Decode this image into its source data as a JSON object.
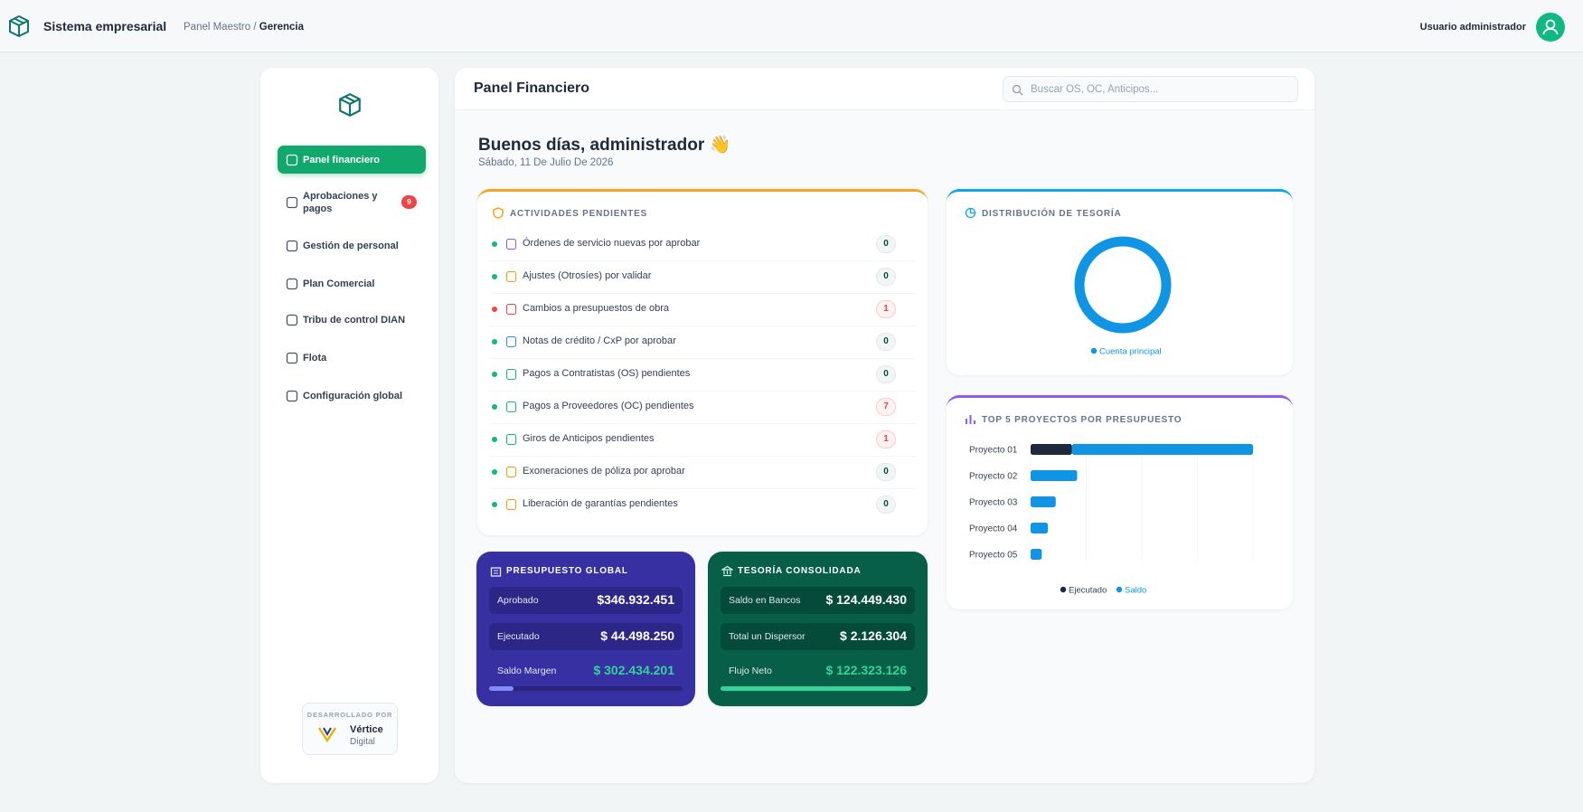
{
  "header": {
    "app_name": "Sistema empresarial",
    "breadcrumb": [
      "Panel Maestro",
      "Gerencia"
    ],
    "user": "Usuario administrador"
  },
  "sidebar": {
    "menu": [
      {
        "label": "Panel financiero",
        "active": true
      },
      {
        "label": "Aprobaciones y pagos",
        "badge": 9
      },
      {
        "label": "Gestión de personal"
      },
      {
        "label": "Plan Comercial"
      },
      {
        "label": "Tribu de control DIAN"
      },
      {
        "label": "Flota"
      },
      {
        "label": "Configuración global"
      }
    ],
    "credit": {
      "caption": "DESARROLLADO POR",
      "brand": "Vértice",
      "sub": "Digital"
    }
  },
  "main": {
    "title": "Panel Financiero",
    "search_placeholder": "Buscar OS, OC, Anticipos...",
    "greeting": "Buenos días, administrador 👋",
    "date": "Sábado, 11 De Julio De 2026"
  },
  "activities": {
    "title": "ACTIVIDADES PENDIENTES",
    "items": [
      {
        "label": "Órdenes de servicio nuevas por aprobar",
        "count": 0,
        "dot_color": "#10b981",
        "icon_color": "#8b5cf6"
      },
      {
        "label": "Ajustes (Otrosíes) por validar",
        "count": 0,
        "dot_color": "#10b981",
        "icon_color": "#f59e0b"
      },
      {
        "label": "Cambios a presupuestos de obra",
        "count": 1,
        "dot_color": "#ef4444",
        "icon_color": "#ef4444"
      },
      {
        "label": "Notas de crédito / CxP por aprobar",
        "count": 0,
        "dot_color": "#10b981",
        "icon_color": "#3b82f6"
      },
      {
        "label": "Pagos a Contratistas (OS) pendientes",
        "count": 0,
        "dot_color": "#10b981",
        "icon_color": "#10b981"
      },
      {
        "label": "Pagos a Proveedores (OC) pendientes",
        "count": 7,
        "dot_color": "#10b981",
        "icon_color": "#10b981"
      },
      {
        "label": "Giros de Anticipos pendientes",
        "count": 1,
        "dot_color": "#10b981",
        "icon_color": "#10b981"
      },
      {
        "label": "Exoneraciones de póliza por aprobar",
        "count": 0,
        "dot_color": "#10b981",
        "icon_color": "#f59e0b"
      },
      {
        "label": "Liberación de garantías pendientes",
        "count": 0,
        "dot_color": "#10b981",
        "icon_color": "#f59e0b"
      }
    ]
  },
  "budget": {
    "title": "PRESUPUESTO GLOBAL",
    "rows": [
      {
        "label": "Aprobado",
        "value": "$346.932.451"
      },
      {
        "label": "Ejecutado",
        "value": "$ 44.498.250"
      },
      {
        "label": "Saldo Margen",
        "value": "$ 302.434.201"
      }
    ],
    "progress_percent": 12.8
  },
  "treasury": {
    "title": "TESORÍA CONSOLIDADA",
    "rows": [
      {
        "label": "Saldo en Bancos",
        "value": "$ 124.449.430"
      },
      {
        "label": "Total un Dispersor",
        "value": "$ 2.126.304"
      },
      {
        "label": "Flujo Neto",
        "value": "$ 122.323.126"
      }
    ],
    "progress_percent": 98.3
  },
  "chart_data": [
    {
      "type": "pie",
      "donut": true,
      "title": "DISTRIBUCIÓN DE TESORÍA",
      "categories": [
        "Cuenta principal"
      ],
      "values": [
        100
      ],
      "colors": [
        "#0f95e3"
      ]
    },
    {
      "type": "bar",
      "orientation": "horizontal",
      "stacked": true,
      "title": "TOP 5 PROYECTOS POR PRESUPUESTO",
      "categories": [
        "Proyecto 01",
        "Proyecto 02",
        "Proyecto 03",
        "Proyecto 04",
        "Proyecto 05"
      ],
      "series": [
        {
          "name": "Ejecutado",
          "color": "#1e293b",
          "values": [
            44500000,
            0,
            0,
            0,
            0
          ]
        },
        {
          "name": "Saldo",
          "color": "#0f95e3",
          "values": [
            194500000,
            50000000,
            27000000,
            18500000,
            12000000
          ]
        }
      ]
    }
  ]
}
